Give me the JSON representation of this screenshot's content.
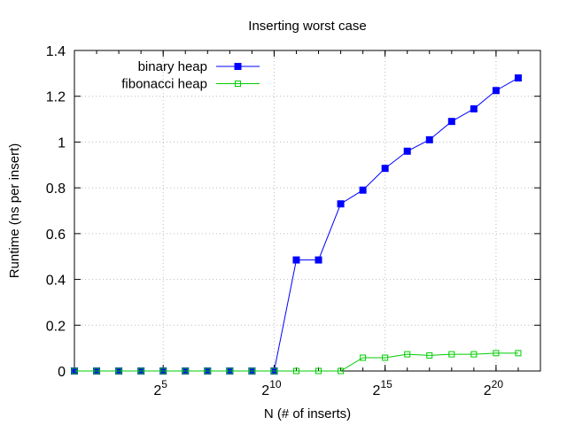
{
  "chart_data": {
    "type": "line",
    "title": "Inserting worst case",
    "xlabel": "N (# of inserts)",
    "ylabel": "Runtime (ns per insert)",
    "x_scale": "log2",
    "x": [
      2,
      4,
      8,
      16,
      32,
      64,
      128,
      256,
      512,
      1024,
      2048,
      4096,
      8192,
      16384,
      32768,
      65536,
      131072,
      262144,
      524288,
      1048576,
      2097152
    ],
    "xlim": [
      2,
      4194304
    ],
    "xticks": [
      {
        "value": 32,
        "base": "2",
        "exp": "5"
      },
      {
        "value": 1024,
        "base": "2",
        "exp": "10"
      },
      {
        "value": 32768,
        "base": "2",
        "exp": "15"
      },
      {
        "value": 1048576,
        "base": "2",
        "exp": "20"
      }
    ],
    "ylim": [
      0,
      1.4
    ],
    "yticks": [
      "0",
      "0.2",
      "0.4",
      "0.6",
      "0.8",
      "1",
      "1.2",
      "1.4"
    ],
    "grid": true,
    "legend_position": "top-left",
    "series": [
      {
        "name": "binary heap",
        "color": "#0000ff",
        "marker": "filled-square",
        "values": [
          0,
          0,
          0,
          0,
          0,
          0,
          0,
          0,
          0,
          0,
          0.485,
          0.485,
          0.73,
          0.79,
          0.885,
          0.96,
          1.01,
          1.09,
          1.145,
          1.225,
          1.28
        ]
      },
      {
        "name": "fibonacci heap",
        "color": "#00cc00",
        "marker": "open-square",
        "values": [
          0,
          0,
          0,
          0,
          0,
          0,
          0,
          0,
          0,
          0,
          0,
          0,
          0,
          0.058,
          0.058,
          0.073,
          0.068,
          0.073,
          0.073,
          0.078,
          0.078
        ]
      }
    ]
  }
}
